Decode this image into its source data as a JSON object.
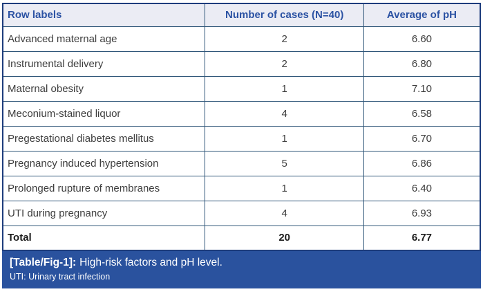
{
  "table": {
    "columns": {
      "label": "Row labels",
      "cases": "Number of cases (N=40)",
      "ph": "Average of pH"
    },
    "rows": [
      {
        "label": "Advanced maternal age",
        "cases": "2",
        "ph": "6.60"
      },
      {
        "label": "Instrumental delivery",
        "cases": "2",
        "ph": "6.80"
      },
      {
        "label": "Maternal obesity",
        "cases": "1",
        "ph": "7.10"
      },
      {
        "label": "Meconium-stained liquor",
        "cases": "4",
        "ph": "6.58"
      },
      {
        "label": "Pregestational diabetes mellitus",
        "cases": "1",
        "ph": "6.70"
      },
      {
        "label": "Pregnancy induced hypertension",
        "cases": "5",
        "ph": "6.86"
      },
      {
        "label": "Prolonged rupture of membranes",
        "cases": "1",
        "ph": "6.40"
      },
      {
        "label": "UTI during pregnancy",
        "cases": "4",
        "ph": "6.93"
      }
    ],
    "total": {
      "label": "Total",
      "cases": "20",
      "ph": "6.77"
    }
  },
  "caption": {
    "tag": "[Table/Fig-1]:",
    "title": "High-risk factors and pH level.",
    "footnote": "UTI: Urinary tract infection"
  },
  "colors": {
    "outer_border": "#1d3c7c",
    "inner_border": "#2e5578",
    "header_bg": "#ebecf4",
    "header_text": "#2b52a3",
    "body_text": "#3d3d3d",
    "caption_bg": "#2a529e",
    "caption_text": "#ffffff"
  }
}
